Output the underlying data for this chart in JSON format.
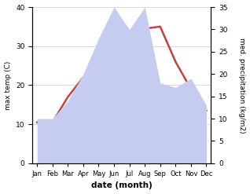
{
  "months": [
    "Jan",
    "Feb",
    "Mar",
    "Apr",
    "May",
    "Jun",
    "Jul",
    "Aug",
    "Sep",
    "Oct",
    "Nov",
    "Dec"
  ],
  "temp_max": [
    10.5,
    10.5,
    17,
    22,
    28,
    29,
    32,
    34.5,
    35,
    26,
    19,
    13.5
  ],
  "precipitation": [
    10,
    10,
    14,
    20,
    28,
    35,
    30,
    35,
    18,
    17,
    19,
    13
  ],
  "temp_color": "#c8403a",
  "precip_fill_color": "#c5ccf0",
  "temp_ylim": [
    0,
    40
  ],
  "precip_ylim": [
    0,
    35
  ],
  "temp_yticks": [
    0,
    10,
    20,
    30,
    40
  ],
  "precip_yticks": [
    0,
    5,
    10,
    15,
    20,
    25,
    30,
    35
  ],
  "xlabel": "date (month)",
  "ylabel_left": "max temp (C)",
  "ylabel_right": "med. precipitation (kg/m2)",
  "figsize": [
    3.18,
    2.47
  ],
  "dpi": 100
}
